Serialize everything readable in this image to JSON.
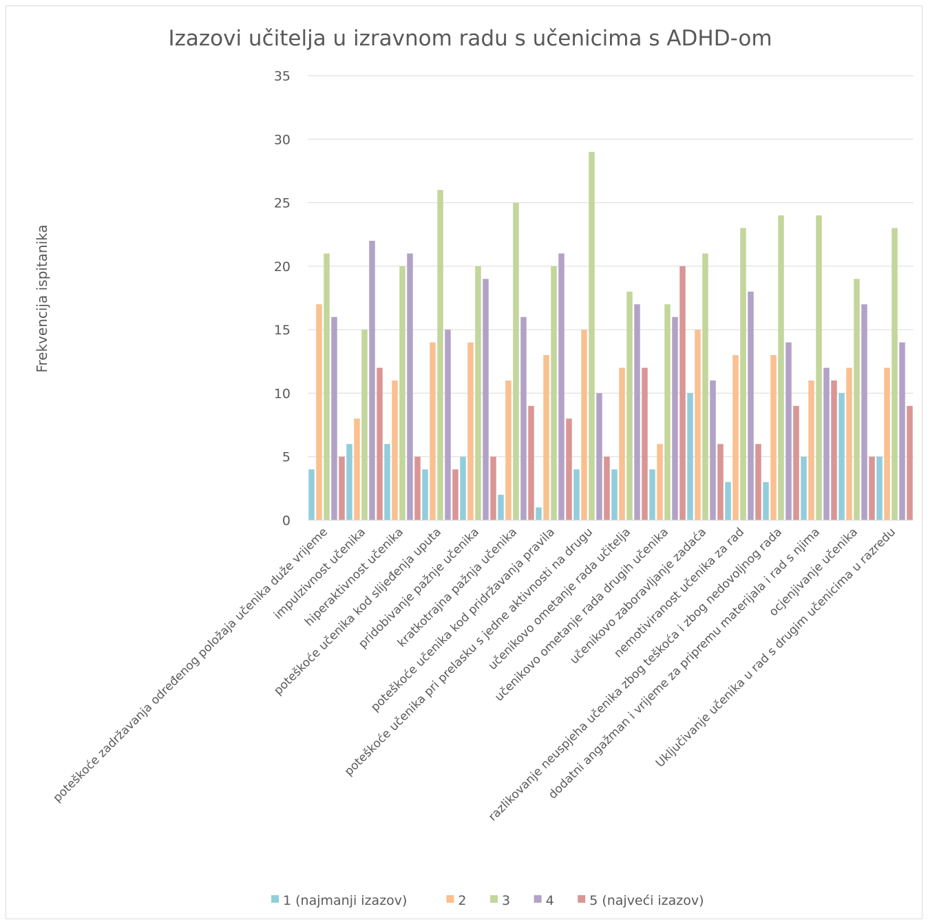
{
  "chart_data": {
    "type": "bar",
    "title": "Izazovi učitelja u izravnom radu s učenicima s ADHD-om",
    "xlabel": "",
    "ylabel": "Frekvencija ispitanika",
    "ylim": [
      0,
      35
    ],
    "yticks": [
      0,
      5,
      10,
      15,
      20,
      25,
      30,
      35
    ],
    "grid": true,
    "legend_position": "bottom",
    "categories": [
      "poteškoće zadržavanja određenog položaja učenika duže vrijeme",
      "impulzivnost učenika",
      "hiperaktivnost učenika",
      "poteškoće učenika kod slijeđenja uputa",
      "pridobivanje pažnje učenika",
      "kratkotrajna pažnja učenika",
      "poteškoće učenika kod pridržavanja pravila",
      "poteškoće učenika pri prelasku s jedne aktivnosti na drugu",
      "učenikovo ometanje rada učitelja",
      "učenikovo ometanje rada drugih učenika",
      "učenikovo zaboravljanje zadaća",
      "nemotiviranost učenika za rad",
      "razlikovanje neuspjeha učenika zbog teškoća i zbog nedovoljnog rada",
      "dodatni angažman i vrijeme za pripremu materijala i rad s njima",
      "ocjenjivanje učenika",
      "Uključivanje učenika u rad s drugim učenicima u razredu"
    ],
    "series": [
      {
        "name": "1 (najmanji izazov)",
        "color": "#92cddc",
        "values": [
          4,
          6,
          6,
          4,
          5,
          2,
          1,
          4,
          4,
          4,
          10,
          3,
          3,
          5,
          10,
          5
        ]
      },
      {
        "name": "2",
        "color": "#fac090",
        "values": [
          17,
          8,
          11,
          14,
          14,
          11,
          13,
          15,
          12,
          6,
          15,
          13,
          13,
          11,
          12,
          12
        ]
      },
      {
        "name": "3",
        "color": "#c3d69b",
        "values": [
          21,
          15,
          20,
          26,
          20,
          25,
          20,
          29,
          18,
          17,
          21,
          23,
          24,
          24,
          19,
          23
        ]
      },
      {
        "name": "4",
        "color": "#b3a2c7",
        "values": [
          16,
          22,
          21,
          15,
          19,
          16,
          21,
          10,
          17,
          16,
          11,
          18,
          14,
          12,
          17,
          14
        ]
      },
      {
        "name": "5 (najveći izazov)",
        "color": "#d99694",
        "values": [
          5,
          12,
          5,
          4,
          5,
          9,
          8,
          5,
          12,
          20,
          6,
          6,
          9,
          11,
          5,
          9
        ]
      }
    ]
  }
}
